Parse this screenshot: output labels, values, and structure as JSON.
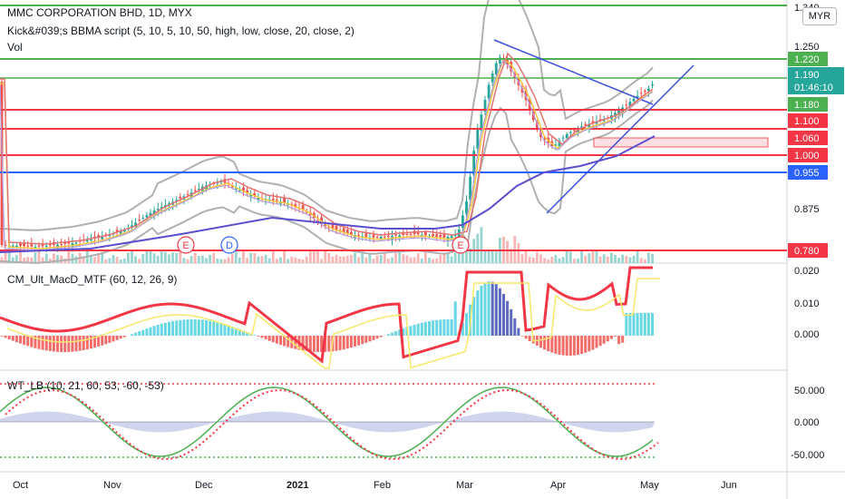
{
  "header": {
    "title": "MMC CORPORATION BHD, 1D, MYX",
    "indicator_1": "Kick&#039;s BBMA script (5, 10, 5, 10, 50, high, low, close, 20, close, 2)",
    "indicator_2": "Vol",
    "currency": "MYR"
  },
  "panes": {
    "macd_label": "CM_Ult_MacD_MTF (60, 12, 26, 9)",
    "wt_label": "WT_LB (10, 21, 60, 53, -60, -53)"
  },
  "price_axis": {
    "ticks": [
      "1.250",
      "0.875"
    ],
    "top_partial": "1.340"
  },
  "price_tags": [
    {
      "text": "1.220",
      "color": "#4caf50"
    },
    {
      "text": "1.190",
      "color": "#26a69a"
    },
    {
      "text": "01:46:10",
      "color": "#26a69a"
    },
    {
      "text": "1.180",
      "color": "#4caf50"
    },
    {
      "text": "1.100",
      "color": "#f23645"
    },
    {
      "text": "1.060",
      "color": "#f23645"
    },
    {
      "text": "1.000",
      "color": "#f23645"
    },
    {
      "text": "0.955",
      "color": "#2962ff"
    },
    {
      "text": "0.780",
      "color": "#f23645"
    }
  ],
  "macd_axis": {
    "ticks": [
      "0.020",
      "0.010",
      "0.000"
    ]
  },
  "wt_axis": {
    "ticks": [
      "50.000",
      "0.000",
      "-50.000"
    ]
  },
  "time_axis": {
    "labels": [
      "Oct",
      "Nov",
      "Dec",
      "2021",
      "Feb",
      "Mar",
      "Apr",
      "May",
      "Jun"
    ]
  },
  "markers": [
    {
      "text": "E",
      "color": "#f23645"
    },
    {
      "text": "D",
      "color": "#2962ff"
    },
    {
      "text": "E",
      "color": "#f23645"
    }
  ],
  "colors": {
    "up": "#26a69a",
    "down": "#ef5350",
    "support_green": "#4caf50",
    "resistance_red": "#f23645",
    "blue_level": "#2962ff",
    "ma50": "#5b4fcf",
    "bollinger": "#b0b0b0"
  }
}
